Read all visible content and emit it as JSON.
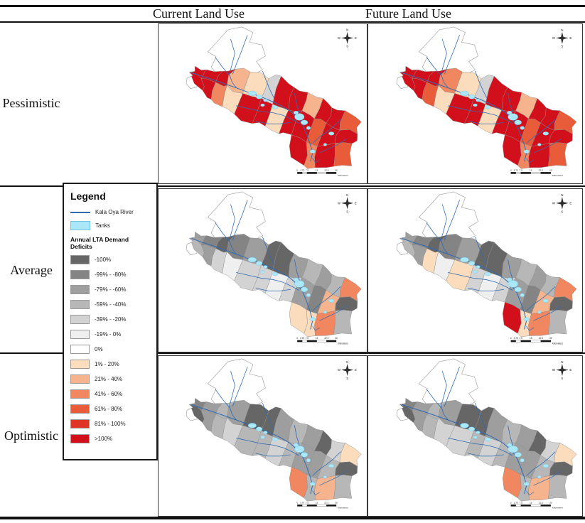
{
  "figure": {
    "columns": {
      "current": "Current Land Use",
      "future": "Future Land Use"
    },
    "rows": {
      "pessimistic": "Pessimistic",
      "average": "Average",
      "optimistic": "Optimistic"
    }
  },
  "legend": {
    "title": "Legend",
    "river_label": "Kala Oya River",
    "river_color": "#2f6bb3",
    "tanks_label": "Tanks",
    "tanks_color": "#a9e7f9",
    "deficits_title": "Annual LTA Demand Deficits",
    "classes": [
      {
        "label": "-100%",
        "color": "#666666"
      },
      {
        "label": "-99% - -80%",
        "color": "#848484"
      },
      {
        "label": "-79% - -60%",
        "color": "#9e9e9e"
      },
      {
        "label": "-59% - -40%",
        "color": "#b7b7b7"
      },
      {
        "label": "-39% - -20%",
        "color": "#d3d3d3"
      },
      {
        "label": "-19% - 0%",
        "color": "#efefef"
      },
      {
        "label": "0%",
        "color": "#ffffff"
      },
      {
        "label": "1% - 20%",
        "color": "#fbdcbd"
      },
      {
        "label": "21% - 40%",
        "color": "#f5b48d"
      },
      {
        "label": "41% - 60%",
        "color": "#f08760"
      },
      {
        "label": "61% - 80%",
        "color": "#e85c3a"
      },
      {
        "label": "81% - 100%",
        "color": "#df3526"
      },
      {
        "label": ">100%",
        "color": "#d2101c"
      }
    ]
  },
  "map_decorations": {
    "compass": {
      "n": "N",
      "e": "E",
      "s": "S",
      "w": "W"
    },
    "scalebar": {
      "ticks": [
        "0",
        "3.75",
        "7.5",
        "15",
        "22.5",
        "30"
      ],
      "unit": "Kilometers"
    }
  },
  "maps": [
    {
      "id": "pessimistic-current",
      "scenario": "Pessimistic",
      "land_use": "Current Land Use",
      "cells": [
        ">100%",
        ">100%",
        ">100%",
        "21% - 40%",
        "1% - 20%",
        "-39% - -20%",
        ">100%",
        ">100%",
        "21% - 40%",
        ">100%",
        ">100%",
        "61% - 80%",
        ">100%",
        ">100%",
        "41% - 60%",
        "1% - 20%",
        ">100%",
        ">100%",
        "1% - 20%",
        ">100%",
        ">100%",
        "61% - 80%",
        ">100%",
        ">100%",
        ">100%",
        "41% - 60%",
        ">100%",
        "61% - 80%"
      ]
    },
    {
      "id": "pessimistic-future",
      "scenario": "Pessimistic",
      "land_use": "Future Land Use",
      "cells": [
        ">100%",
        ">100%",
        ">100%",
        "41% - 60%",
        "1% - 20%",
        "-39% - -20%",
        ">100%",
        ">100%",
        "21% - 40%",
        ">100%",
        ">100%",
        "61% - 80%",
        ">100%",
        ">100%",
        "61% - 80%",
        "1% - 20%",
        ">100%",
        ">100%",
        "1% - 20%",
        ">100%",
        ">100%",
        "61% - 80%",
        ">100%",
        ">100%",
        ">100%",
        "41% - 60%",
        ">100%",
        "61% - 80%"
      ]
    },
    {
      "id": "average-current",
      "scenario": "Average",
      "land_use": "Current Land Use",
      "cells": [
        "-79% - -60%",
        "-99% - -80%",
        "-100%",
        "-99% - -80%",
        "-79% - -60%",
        "-100%",
        "-100%",
        "-79% - -60%",
        "-59% - -40%",
        "-79% - -60%",
        "-59% - -40%",
        "41% - 60%",
        "-59% - -40%",
        "-79% - -60%",
        "-39% - -20%",
        "-19% - 0%",
        "-39% - -20%",
        "-39% - -20%",
        "-19% - 0%",
        "-39% - -20%",
        "-79% - -60%",
        "-99% - -80%",
        "21% - 40%",
        "-100%",
        "1% - 20%",
        "1% - 20%",
        "41% - 60%",
        "-59% - -40%"
      ]
    },
    {
      "id": "average-future",
      "scenario": "Average",
      "land_use": "Future Land Use",
      "cells": [
        "-79% - -60%",
        "-99% - -80%",
        "-100%",
        "-99% - -80%",
        "-79% - -60%",
        "-100%",
        "-100%",
        "-79% - -60%",
        "-59% - -40%",
        "-79% - -60%",
        "-59% - -40%",
        "41% - 60%",
        "-59% - -40%",
        "-79% - -60%",
        "1% - 20%",
        "-19% - 0%",
        "1% - 20%",
        "-39% - -20%",
        "-19% - 0%",
        "-39% - -20%",
        "-79% - -60%",
        "-99% - -80%",
        "21% - 40%",
        "-100%",
        ">100%",
        "1% - 20%",
        "41% - 60%",
        "-59% - -40%"
      ]
    },
    {
      "id": "optimistic-current",
      "scenario": "Optimistic",
      "land_use": "Current Land Use",
      "cells": [
        "-99% - -80%",
        "-79% - -60%",
        "-59% - -40%",
        "-79% - -60%",
        "-100%",
        "-100%",
        "-79% - -60%",
        "-59% - -40%",
        "-79% - -60%",
        "-100%",
        "-39% - -20%",
        "1% - 20%",
        "-100%",
        "-79% - -60%",
        "-59% - -40%",
        "-39% - -20%",
        "-59% - -40%",
        "-59% - -40%",
        "-39% - -20%",
        "-59% - -40%",
        "-79% - -60%",
        "-79% - -60%",
        "-59% - -40%",
        "-100%",
        "41% - 60%",
        "-59% - -40%",
        "21% - 40%",
        "-59% - -40%"
      ]
    },
    {
      "id": "optimistic-future",
      "scenario": "Optimistic",
      "land_use": "Future Land Use",
      "cells": [
        "-99% - -80%",
        "-79% - -60%",
        "-59% - -40%",
        "-79% - -60%",
        "-100%",
        "-100%",
        "-79% - -60%",
        "-59% - -40%",
        "-79% - -60%",
        "-100%",
        "-39% - -20%",
        "1% - 20%",
        "-100%",
        "-79% - -60%",
        "-59% - -40%",
        "-39% - -20%",
        "-39% - -20%",
        "-59% - -40%",
        "-39% - -20%",
        "-59% - -40%",
        "-79% - -60%",
        "-79% - -60%",
        "-59% - -40%",
        "-100%",
        "41% - 60%",
        "-59% - -40%",
        "21% - 40%",
        "-59% - -40%"
      ]
    }
  ]
}
